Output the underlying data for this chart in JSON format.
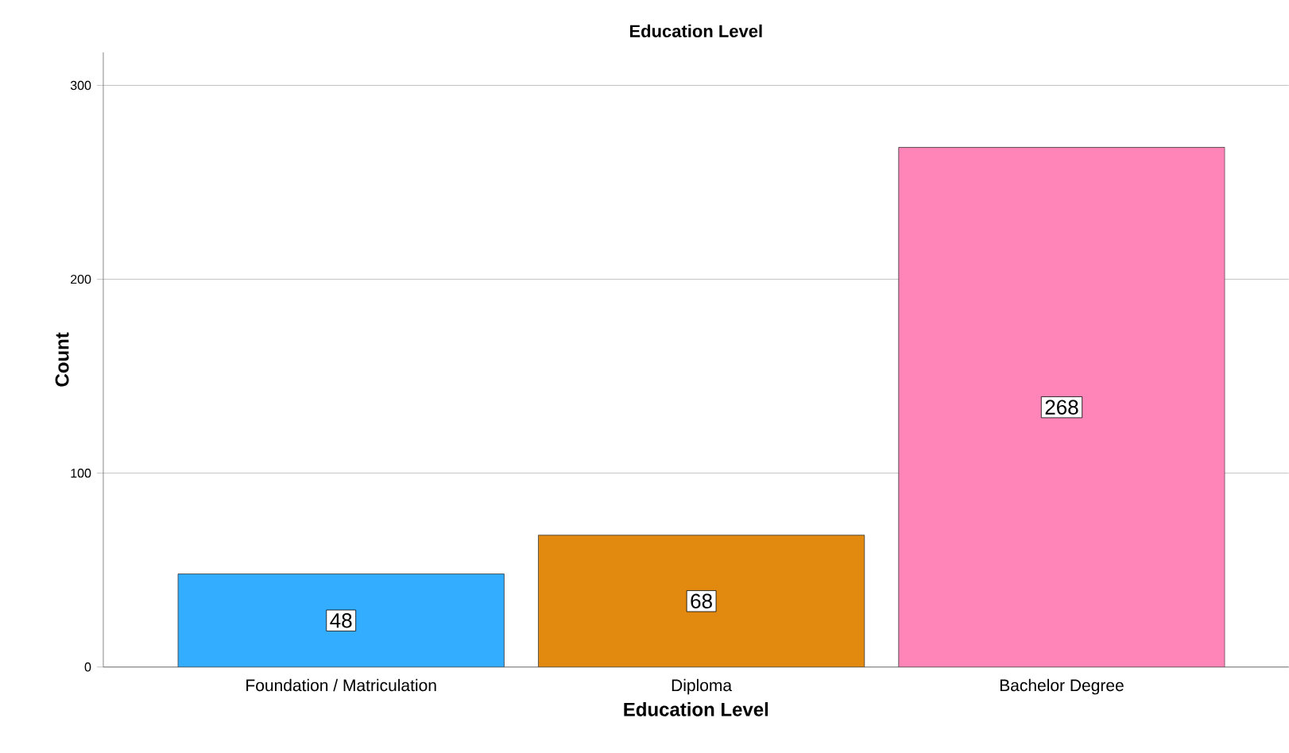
{
  "chart_data": {
    "type": "bar",
    "title": "Education Level",
    "xlabel": "Education Level",
    "ylabel": "Count",
    "categories": [
      "Foundation / Matriculation",
      "Diploma",
      "Bachelor Degree"
    ],
    "values": [
      48,
      68,
      268
    ],
    "colors": [
      "#33adff",
      "#e28a0f",
      "#ff85b8"
    ],
    "ylim": [
      0,
      317
    ],
    "yticks": [
      0,
      100,
      200,
      300
    ],
    "grid": "y",
    "data_labels": true
  }
}
